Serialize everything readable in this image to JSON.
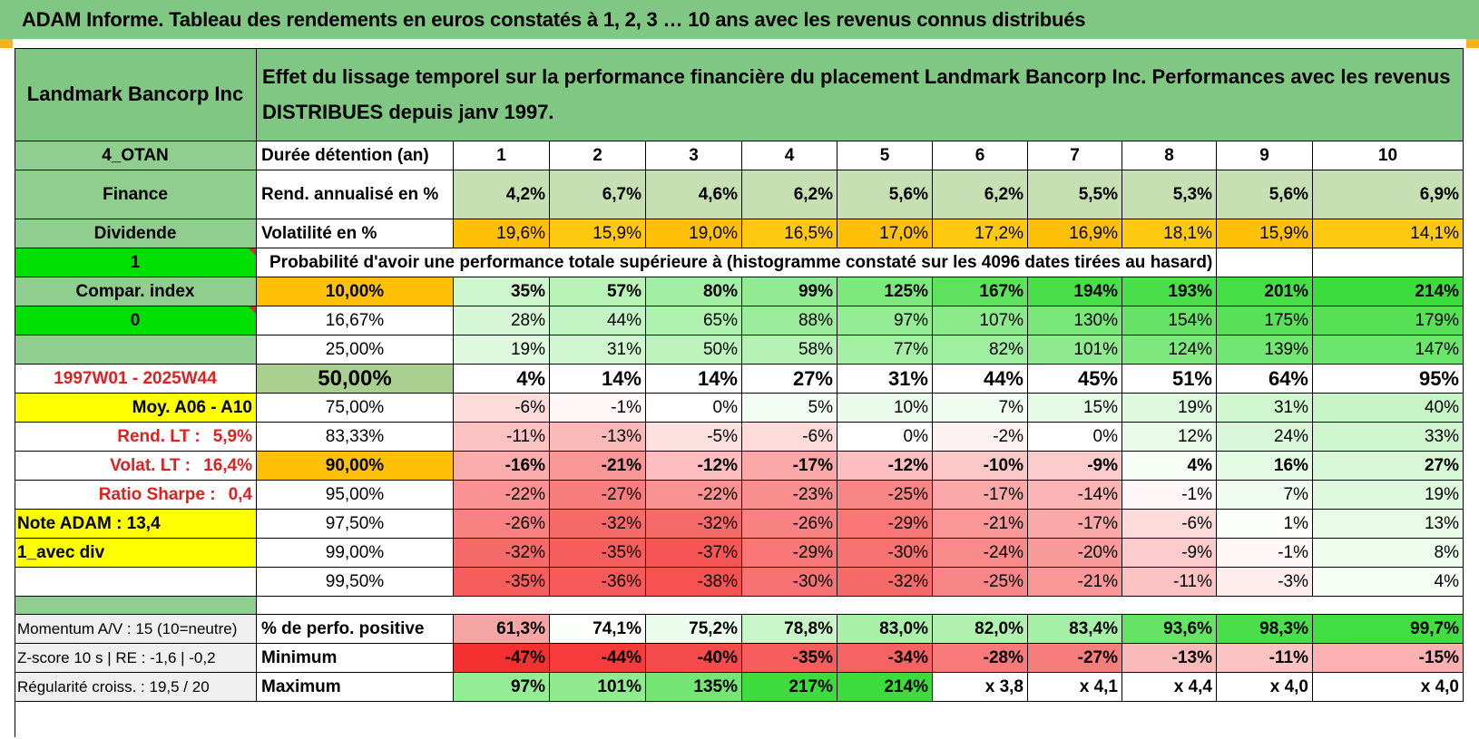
{
  "title": "ADAM Informe. Tableau des rendements en euros constatés à 1, 2, 3 … 10 ans avec les revenus connus distribués",
  "colors": {
    "header_green": "#81c784",
    "label_green": "#8fce8f",
    "bright_green": "#00e000",
    "orange": "#ffc107",
    "yellow": "#ffff00",
    "rend_green": "#c6e0b4",
    "pct50_green": "#a9d08e",
    "red_text": "#e02020"
  },
  "header": {
    "company": "Landmark Bancorp Inc",
    "description": "Effet du lissage temporel sur la performance financière du placement Landmark Bancorp Inc. Performances avec les revenus DISTRIBUES depuis janv 1997."
  },
  "sidebar": {
    "code": "4_OTAN",
    "sector": "Finance",
    "type": "Dividende",
    "flag1": "1",
    "compar_index": "Compar. index",
    "flag0": "0",
    "period": "1997W01 - 2025W44",
    "moy": "Moy. A06 - A10",
    "rend_lt_label": "Rend. LT :",
    "rend_lt_value": "5,9%",
    "volat_lt_label": "Volat. LT :",
    "volat_lt_value": "16,4%",
    "sharpe_label": "Ratio Sharpe :",
    "sharpe_value": "0,4",
    "note": "Note ADAM : 13,4",
    "avec_div": "1_avec div",
    "momentum": "Momentum A/V : 15 (10=neutre)",
    "zscore": "Z-score 10 s | RE : -1,6 | -0,2",
    "regularite": "Régularité croiss. : 19,5 / 20"
  },
  "table": {
    "duree_label": "Durée détention (an)",
    "years": [
      "1",
      "2",
      "3",
      "4",
      "5",
      "6",
      "7",
      "8",
      "9",
      "10"
    ],
    "rend_label": "Rend. annualisé en %",
    "rend": [
      "4,2%",
      "6,7%",
      "4,6%",
      "6,2%",
      "5,6%",
      "6,2%",
      "5,5%",
      "5,3%",
      "5,6%",
      "6,9%"
    ],
    "vol_label": "Volatilité en %",
    "vol": [
      "19,6%",
      "15,9%",
      "19,0%",
      "16,5%",
      "17,0%",
      "17,2%",
      "16,9%",
      "18,1%",
      "15,9%",
      "14,1%"
    ],
    "prob_label": "Probabilité d'avoir une performance totale supérieure à (histogramme constaté sur les 4096 dates tirées au hasard)",
    "quantiles": [
      {
        "p": "10,00%",
        "v": [
          "35%",
          "57%",
          "80%",
          "99%",
          "125%",
          "167%",
          "194%",
          "193%",
          "201%",
          "214%"
        ]
      },
      {
        "p": "16,67%",
        "v": [
          "28%",
          "44%",
          "65%",
          "88%",
          "97%",
          "107%",
          "130%",
          "154%",
          "175%",
          "179%"
        ]
      },
      {
        "p": "25,00%",
        "v": [
          "19%",
          "31%",
          "50%",
          "58%",
          "77%",
          "82%",
          "101%",
          "124%",
          "139%",
          "147%"
        ]
      },
      {
        "p": "50,00%",
        "v": [
          "4%",
          "14%",
          "14%",
          "27%",
          "31%",
          "44%",
          "45%",
          "51%",
          "64%",
          "95%"
        ]
      },
      {
        "p": "75,00%",
        "v": [
          "-6%",
          "-1%",
          "0%",
          "5%",
          "10%",
          "7%",
          "15%",
          "19%",
          "31%",
          "40%"
        ]
      },
      {
        "p": "83,33%",
        "v": [
          "-11%",
          "-13%",
          "-5%",
          "-6%",
          "0%",
          "-2%",
          "0%",
          "12%",
          "24%",
          "33%"
        ]
      },
      {
        "p": "90,00%",
        "v": [
          "-16%",
          "-21%",
          "-12%",
          "-17%",
          "-12%",
          "-10%",
          "-9%",
          "4%",
          "16%",
          "27%"
        ]
      },
      {
        "p": "95,00%",
        "v": [
          "-22%",
          "-27%",
          "-22%",
          "-23%",
          "-25%",
          "-17%",
          "-14%",
          "-1%",
          "7%",
          "19%"
        ]
      },
      {
        "p": "97,50%",
        "v": [
          "-26%",
          "-32%",
          "-32%",
          "-26%",
          "-29%",
          "-21%",
          "-17%",
          "-6%",
          "1%",
          "13%"
        ]
      },
      {
        "p": "99,00%",
        "v": [
          "-32%",
          "-35%",
          "-37%",
          "-29%",
          "-30%",
          "-24%",
          "-20%",
          "-9%",
          "-1%",
          "8%"
        ]
      },
      {
        "p": "99,50%",
        "v": [
          "-35%",
          "-36%",
          "-38%",
          "-30%",
          "-32%",
          "-25%",
          "-21%",
          "-11%",
          "-3%",
          "4%"
        ]
      }
    ],
    "positive_label": "% de perfo. positive",
    "positive": [
      "61,3%",
      "74,1%",
      "75,2%",
      "78,8%",
      "83,0%",
      "82,0%",
      "83,4%",
      "93,6%",
      "98,3%",
      "99,7%"
    ],
    "min_label": "Minimum",
    "min": [
      "-47%",
      "-44%",
      "-40%",
      "-35%",
      "-34%",
      "-28%",
      "-27%",
      "-13%",
      "-11%",
      "-15%"
    ],
    "max_label": "Maximum",
    "max": [
      "97%",
      "101%",
      "135%",
      "217%",
      "214%",
      "x 3,8",
      "x 4,1",
      "x 4,4",
      "x 4,0",
      "x 4,0"
    ]
  }
}
